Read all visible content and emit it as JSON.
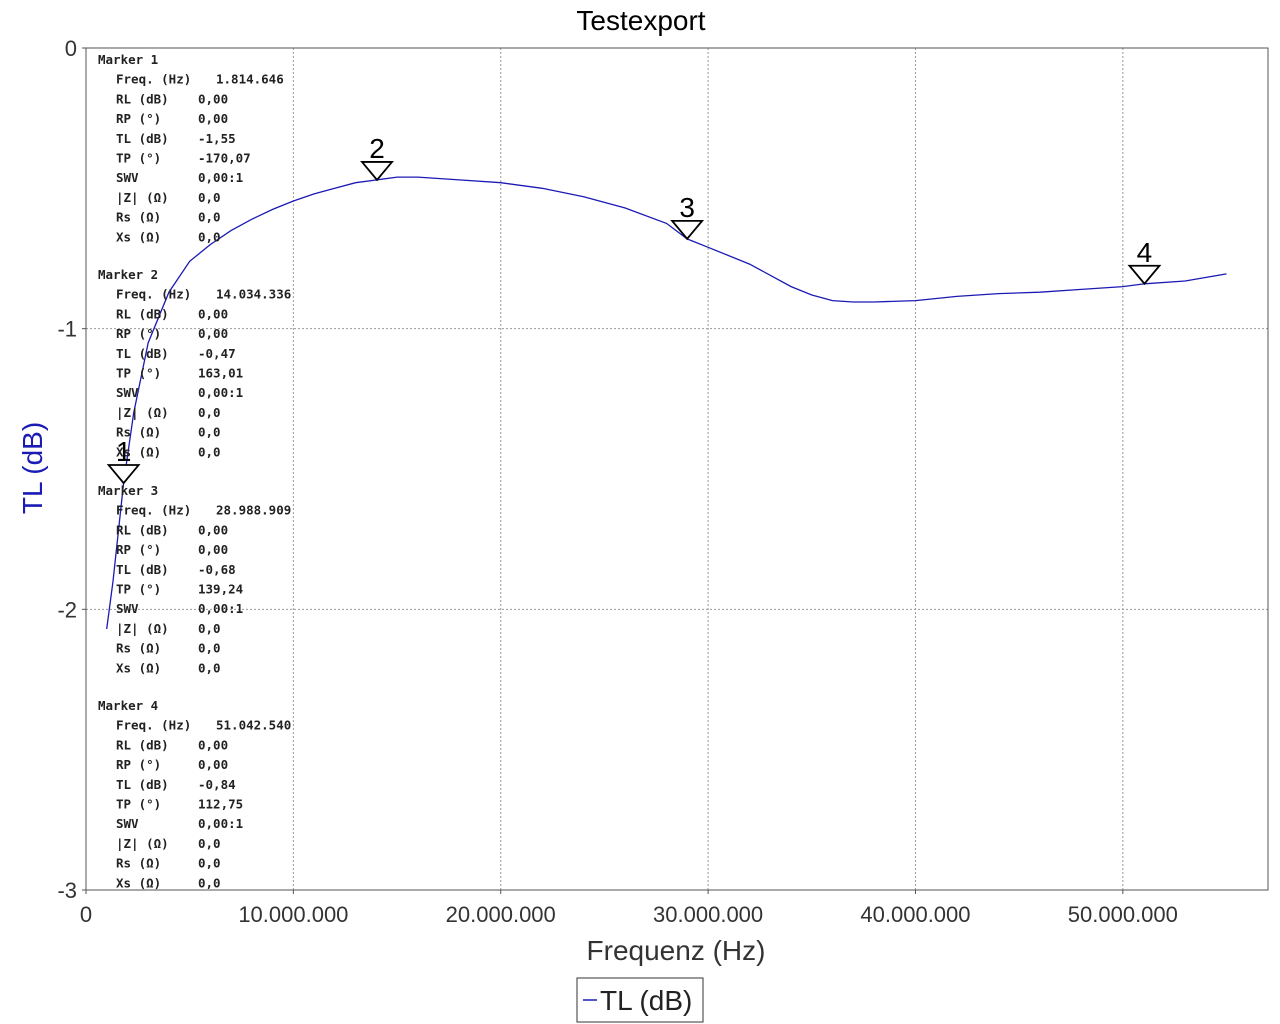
{
  "chart_data": {
    "type": "line",
    "title": "Testexport",
    "xlabel": "Frequenz (Hz)",
    "ylabel": "TL (dB)",
    "xlim": [
      0,
      57000000
    ],
    "ylim": [
      -3,
      0
    ],
    "x_ticks": [
      {
        "value": 0,
        "label": "0"
      },
      {
        "value": 10000000,
        "label": "10.000.000"
      },
      {
        "value": 20000000,
        "label": "20.000.000"
      },
      {
        "value": 30000000,
        "label": "30.000.000"
      },
      {
        "value": 40000000,
        "label": "40.000.000"
      },
      {
        "value": 50000000,
        "label": "50.000.000"
      }
    ],
    "y_ticks": [
      {
        "value": 0,
        "label": "0"
      },
      {
        "value": -1,
        "label": "-1"
      },
      {
        "value": -2,
        "label": "-2"
      },
      {
        "value": -3,
        "label": "-3"
      }
    ],
    "grid": true,
    "legend": {
      "position": "bottom-center",
      "entries": [
        "TL (dB)"
      ]
    },
    "series": [
      {
        "name": "TL (dB)",
        "color": "#1a1ab4",
        "x": [
          1000000,
          1300000,
          1814646,
          2300000,
          3000000,
          4000000,
          5000000,
          6000000,
          7000000,
          8000000,
          9000000,
          10000000,
          11000000,
          12000000,
          13000000,
          14034336,
          15000000,
          16000000,
          17000000,
          18000000,
          20000000,
          22000000,
          24000000,
          26000000,
          28000000,
          28988909,
          30000000,
          32000000,
          34000000,
          35000000,
          36000000,
          37000000,
          38000000,
          40000000,
          42000000,
          44000000,
          46000000,
          48000000,
          50000000,
          51042540,
          53000000,
          55000000
        ],
        "y": [
          -2.07,
          -1.9,
          -1.55,
          -1.3,
          -1.05,
          -0.87,
          -0.76,
          -0.7,
          -0.65,
          -0.61,
          -0.575,
          -0.545,
          -0.52,
          -0.5,
          -0.48,
          -0.47,
          -0.46,
          -0.46,
          -0.465,
          -0.47,
          -0.48,
          -0.5,
          -0.53,
          -0.57,
          -0.625,
          -0.68,
          -0.71,
          -0.77,
          -0.85,
          -0.88,
          -0.9,
          -0.905,
          -0.905,
          -0.9,
          -0.885,
          -0.875,
          -0.87,
          -0.86,
          -0.85,
          -0.84,
          -0.83,
          -0.805
        ]
      }
    ],
    "markers": [
      {
        "id": "1",
        "x": 1814646,
        "y": -1.55
      },
      {
        "id": "2",
        "x": 14034336,
        "y": -0.47
      },
      {
        "id": "3",
        "x": 28988909,
        "y": -0.68
      },
      {
        "id": "4",
        "x": 51042540,
        "y": -0.84
      }
    ],
    "marker_table": [
      {
        "header": "Marker 1",
        "rows": [
          [
            "Freq. (Hz)",
            "1.814.646"
          ],
          [
            "RL (dB)",
            "0,00"
          ],
          [
            "RP (°)",
            "0,00"
          ],
          [
            "TL (dB)",
            "-1,55"
          ],
          [
            "TP (°)",
            "-170,07"
          ],
          [
            "SWV",
            "0,00:1"
          ],
          [
            "|Z| (Ω)",
            "0,0"
          ],
          [
            "Rs (Ω)",
            "0,0"
          ],
          [
            "Xs (Ω)",
            "0,0"
          ]
        ]
      },
      {
        "header": "Marker 2",
        "rows": [
          [
            "Freq. (Hz)",
            "14.034.336"
          ],
          [
            "RL (dB)",
            "0,00"
          ],
          [
            "RP (°)",
            "0,00"
          ],
          [
            "TL (dB)",
            "-0,47"
          ],
          [
            "TP (°)",
            "163,01"
          ],
          [
            "SWV",
            "0,00:1"
          ],
          [
            "|Z| (Ω)",
            "0,0"
          ],
          [
            "Rs (Ω)",
            "0,0"
          ],
          [
            "Xs (Ω)",
            "0,0"
          ]
        ]
      },
      {
        "header": "Marker 3",
        "rows": [
          [
            "Freq. (Hz)",
            "28.988.909"
          ],
          [
            "RL (dB)",
            "0,00"
          ],
          [
            "RP (°)",
            "0,00"
          ],
          [
            "TL (dB)",
            "-0,68"
          ],
          [
            "TP (°)",
            "139,24"
          ],
          [
            "SWV",
            "0,00:1"
          ],
          [
            "|Z| (Ω)",
            "0,0"
          ],
          [
            "Rs (Ω)",
            "0,0"
          ],
          [
            "Xs (Ω)",
            "0,0"
          ]
        ]
      },
      {
        "header": "Marker 4",
        "rows": [
          [
            "Freq. (Hz)",
            "51.042.540"
          ],
          [
            "RL (dB)",
            "0,00"
          ],
          [
            "RP (°)",
            "0,00"
          ],
          [
            "TL (dB)",
            "-0,84"
          ],
          [
            "TP (°)",
            "112,75"
          ],
          [
            "SWV",
            "0,00:1"
          ],
          [
            "|Z| (Ω)",
            "0,0"
          ],
          [
            "Rs (Ω)",
            "0,0"
          ],
          [
            "Xs (Ω)",
            "0,0"
          ]
        ]
      }
    ]
  }
}
